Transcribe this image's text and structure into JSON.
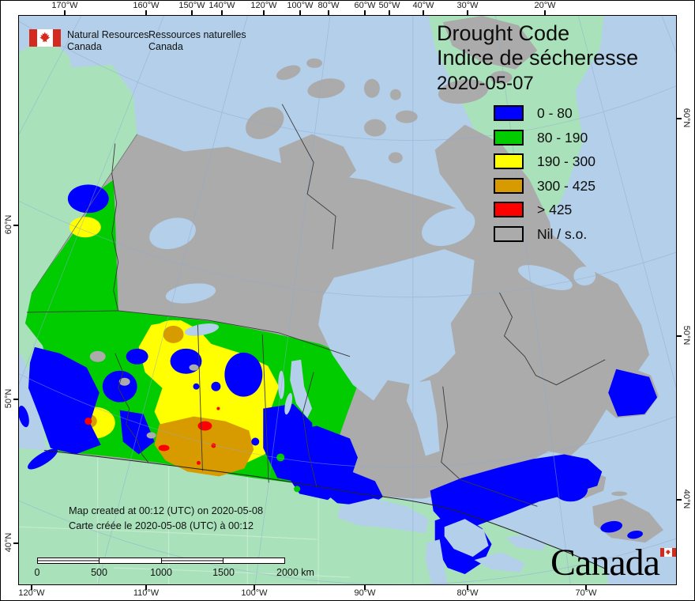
{
  "header": {
    "flag_icon": "canada-flag",
    "org_en_line1": "Natural Resources",
    "org_en_line2": "Canada",
    "org_fr_line1": "Ressources naturelles",
    "org_fr_line2": "Canada"
  },
  "title": {
    "en": "Drought Code",
    "fr": "Indice de sécheresse",
    "date": "2020-05-07"
  },
  "legend": {
    "items": [
      {
        "label": "0 - 80",
        "color": "#0000FF"
      },
      {
        "label": "80 - 190",
        "color": "#00CC00"
      },
      {
        "label": "190 - 300",
        "color": "#FFFF00"
      },
      {
        "label": "300 - 425",
        "color": "#D79B00"
      },
      {
        "label": "> 425",
        "color": "#FF0000"
      },
      {
        "label": "Nil / s.o.",
        "color": "#ABABAB"
      }
    ]
  },
  "annotations": {
    "created_en": "Map created at 00:12 (UTC) on 2020-05-08",
    "created_fr": "Carte créée le 2020-05-08 (UTC) à 00:12"
  },
  "scalebar": {
    "labels": [
      "0",
      "500",
      "1000",
      "1500"
    ],
    "end_label": "2000 km"
  },
  "axes": {
    "top": [
      "170°W",
      "160°W",
      "150°W",
      "140°W",
      "120°W",
      "100°W",
      "80°W",
      "60°W",
      "50°W",
      "40°W",
      "30°W",
      "20°W"
    ],
    "bottom": [
      "120°W",
      "110°W",
      "100°W",
      "90°W",
      "80°W",
      "70°W"
    ],
    "left": [
      "60°N",
      "50°N",
      "40°N"
    ],
    "right": [
      "60°N",
      "50°N",
      "40°N"
    ]
  },
  "wordmark": "Canada",
  "map_colors": {
    "ocean": "#B3CFE9",
    "foreign_land": "#A9E2BA",
    "nil_land": "#ABABAB",
    "dc_0_80": "#0000FF",
    "dc_80_190": "#00CC00",
    "dc_190_300": "#FFFF00",
    "dc_300_425": "#D79B00",
    "dc_over_425": "#FF0000"
  }
}
